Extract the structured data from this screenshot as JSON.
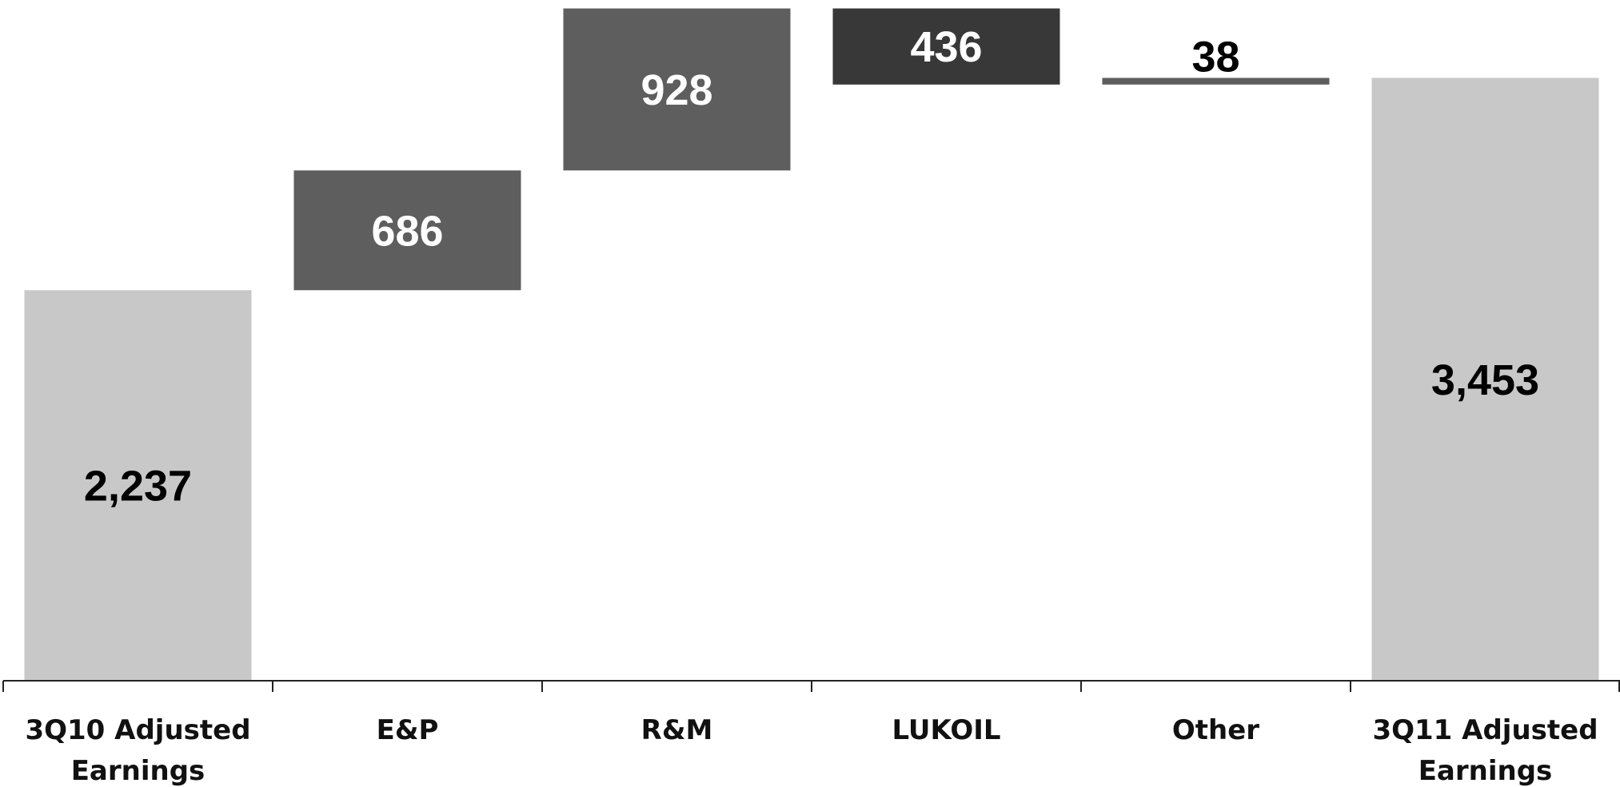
{
  "chart_data": {
    "type": "waterfall",
    "title": "",
    "xlabel": "",
    "ylabel": "",
    "ylim": [
      0,
      3600
    ],
    "grid": false,
    "legend": "none",
    "categories": [
      [
        "3Q10 Adjusted",
        "Earnings"
      ],
      [
        "E&P"
      ],
      [
        "R&M"
      ],
      [
        "LUKOIL"
      ],
      [
        "Other"
      ],
      [
        "3Q11 Adjusted",
        "Earnings"
      ]
    ],
    "bars": [
      {
        "kind": "total",
        "start": 0,
        "end": 2237,
        "label": "2,237",
        "color": "#c8c8c8",
        "label_color": "#000000"
      },
      {
        "kind": "delta",
        "start": 2237,
        "end": 2923,
        "label": "686",
        "color": "#5e5e5e",
        "label_color": "#ffffff"
      },
      {
        "kind": "delta",
        "start": 2923,
        "end": 3851,
        "label": "928",
        "color": "#5e5e5e",
        "label_color": "#ffffff"
      },
      {
        "kind": "delta",
        "start": 3851,
        "end": 3415,
        "label": "436",
        "color": "#383838",
        "label_color": "#ffffff"
      },
      {
        "kind": "delta",
        "start": 3415,
        "end": 3453,
        "label": "38",
        "color": "#5e5e5e",
        "label_color": "#000000"
      },
      {
        "kind": "total",
        "start": 0,
        "end": 3453,
        "label": "3,453",
        "color": "#c8c8c8",
        "label_color": "#000000"
      }
    ],
    "axis_color": "#222222"
  }
}
